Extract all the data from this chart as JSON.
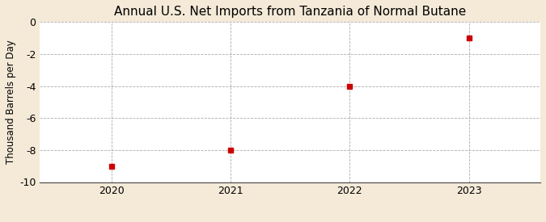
{
  "title": "Annual U.S. Net Imports from Tanzania of Normal Butane",
  "ylabel": "Thousand Barrels per Day",
  "x": [
    2020,
    2021,
    2022,
    2023
  ],
  "y": [
    -9.0,
    -8.0,
    -4.0,
    -1.0
  ],
  "ylim": [
    -10,
    0
  ],
  "yticks": [
    0,
    -2,
    -4,
    -6,
    -8,
    -10
  ],
  "ytick_labels": [
    "0",
    "-2",
    "-4",
    "-6",
    "-8",
    "-10"
  ],
  "xlim": [
    2019.4,
    2023.6
  ],
  "xticks": [
    2020,
    2021,
    2022,
    2023
  ],
  "marker_color": "#cc0000",
  "marker": "s",
  "marker_size": 4,
  "plot_bg_color": "#ffffff",
  "fig_bg_color": "#f5ead8",
  "grid_color": "#888888",
  "title_fontsize": 11,
  "axis_label_fontsize": 8.5,
  "tick_fontsize": 9,
  "source_fontsize": 7.5
}
